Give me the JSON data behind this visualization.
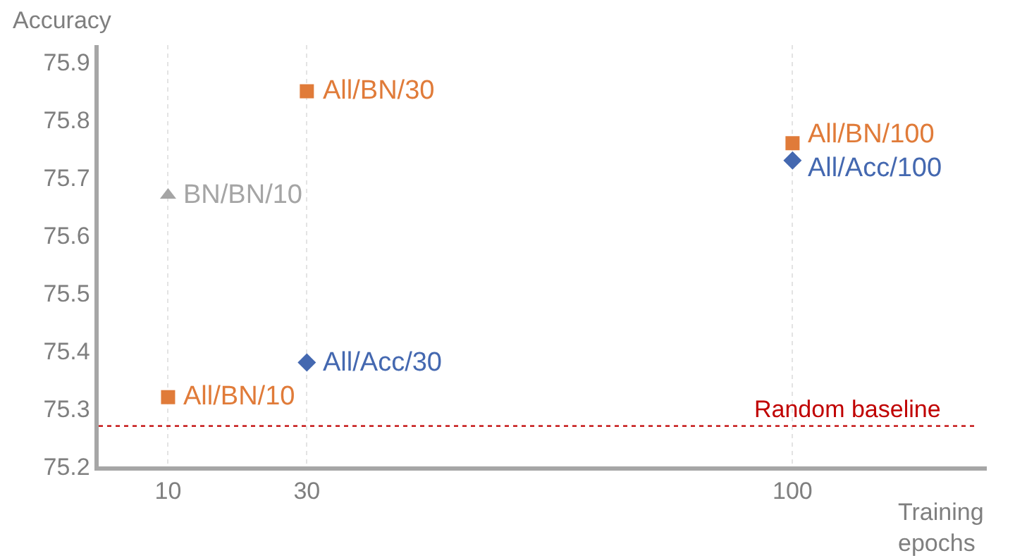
{
  "chart_data": {
    "type": "scatter",
    "xlabel": "Training epochs",
    "ylabel": "Accuracy",
    "series": [
      {
        "color": "#e07b39",
        "marker": "square",
        "x": [
          10,
          30,
          100
        ],
        "values": [
          75.32,
          75.85,
          75.76
        ]
      },
      {
        "color": "#4468b0",
        "marker": "diamond",
        "x": [
          30,
          100
        ],
        "values": [
          75.38,
          75.73
        ]
      },
      {
        "color": "#a5a5a5",
        "marker": "triangle",
        "x": [
          10
        ],
        "values": [
          75.67
        ]
      }
    ],
    "annotations": [
      {
        "text": "All/BN/10",
        "x": 10,
        "y": 75.32
      },
      {
        "text": "All/BN/30",
        "x": 30,
        "y": 75.85
      },
      {
        "text": "All/BN/100",
        "x": 100,
        "y": 75.76
      },
      {
        "text": "All/Acc/30",
        "x": 30,
        "y": 75.38
      },
      {
        "text": "All/Acc/100",
        "x": 100,
        "y": 75.73
      },
      {
        "text": "BN/BN/10",
        "x": 10,
        "y": 75.67
      }
    ],
    "ref_lines": [
      {
        "axis": "y",
        "value": 75.27,
        "label": "Random baseline",
        "color": "#c00000",
        "line_style": "dotted"
      }
    ],
    "xlim": [
      0,
      128
    ],
    "xticks": [
      10,
      30,
      100
    ],
    "ylim": [
      75.2,
      75.93
    ],
    "yticks": [
      75.2,
      75.3,
      75.4,
      75.5,
      75.6,
      75.7,
      75.8,
      75.9
    ],
    "grid": "x"
  }
}
